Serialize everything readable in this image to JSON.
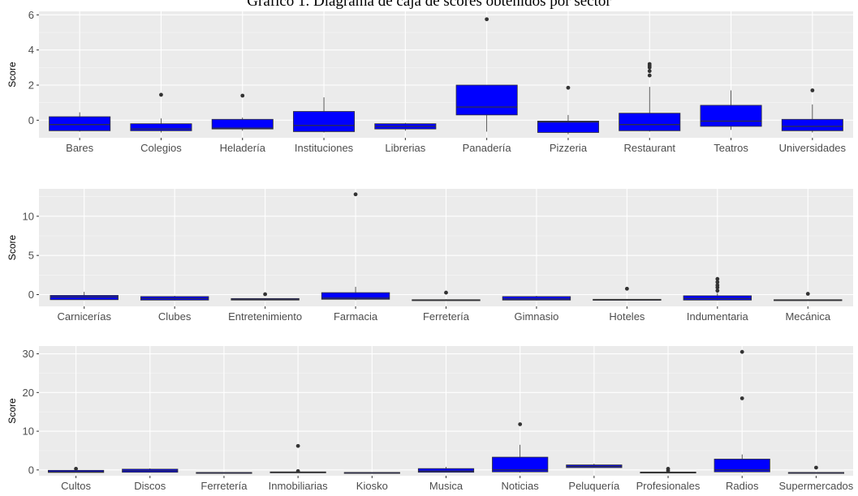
{
  "title": "Gráfico 1. Diagrama de caja de scores obtenidos por sector",
  "chart_data": [
    {
      "type": "boxplot",
      "ylabel": "Score",
      "ylim": [
        -1.0,
        6.2
      ],
      "yticks": [
        0,
        2,
        4,
        6
      ],
      "categories": [
        "Bares",
        "Colegios",
        "Heladería",
        "Instituciones",
        "Librerias",
        "Panadería",
        "Pizzeria",
        "Restaurant",
        "Teatros",
        "Universidades"
      ],
      "boxes": [
        {
          "min": -0.65,
          "q1": -0.6,
          "median": -0.25,
          "q3": 0.2,
          "max": 0.45,
          "outliers": []
        },
        {
          "min": -0.7,
          "q1": -0.6,
          "median": -0.5,
          "q3": -0.2,
          "max": 0.1,
          "outliers": [
            1.45
          ]
        },
        {
          "min": -0.6,
          "q1": -0.5,
          "median": -0.45,
          "q3": 0.05,
          "max": 0.15,
          "outliers": [
            1.4
          ]
        },
        {
          "min": -0.7,
          "q1": -0.65,
          "median": -0.3,
          "q3": 0.5,
          "max": 1.3,
          "outliers": []
        },
        {
          "min": -0.6,
          "q1": -0.5,
          "median": -0.35,
          "q3": -0.2,
          "max": -0.15,
          "outliers": []
        },
        {
          "min": -0.65,
          "q1": 0.3,
          "median": 0.75,
          "q3": 2.0,
          "max": 2.0,
          "outliers": [
            5.75
          ]
        },
        {
          "min": -0.8,
          "q1": -0.7,
          "median": -0.1,
          "q3": -0.05,
          "max": 0.3,
          "outliers": [
            1.85
          ]
        },
        {
          "min": -0.65,
          "q1": -0.6,
          "median": -0.25,
          "q3": 0.4,
          "max": 1.9,
          "outliers": [
            2.55,
            2.8,
            3.0,
            3.1,
            3.2
          ]
        },
        {
          "min": -0.55,
          "q1": -0.35,
          "median": -0.05,
          "q3": 0.85,
          "max": 1.7,
          "outliers": []
        },
        {
          "min": -0.7,
          "q1": -0.6,
          "median": -0.35,
          "q3": 0.05,
          "max": 0.9,
          "outliers": [
            1.7
          ]
        }
      ]
    },
    {
      "type": "boxplot",
      "ylabel": "Score",
      "ylim": [
        -1.5,
        13.5
      ],
      "yticks": [
        0,
        5,
        10
      ],
      "categories": [
        "Carnicerías",
        "Clubes",
        "Entretenimiento",
        "Farmacia",
        "Ferretería",
        "Gimnasio",
        "Hoteles",
        "Indumentaria",
        "Mecánica"
      ],
      "boxes": [
        {
          "min": -0.7,
          "q1": -0.65,
          "median": -0.3,
          "q3": -0.1,
          "max": 0.35,
          "outliers": []
        },
        {
          "min": -0.75,
          "q1": -0.7,
          "median": -0.5,
          "q3": -0.25,
          "max": -0.15,
          "outliers": []
        },
        {
          "min": -0.75,
          "q1": -0.7,
          "median": -0.6,
          "q3": -0.5,
          "max": -0.45,
          "outliers": [
            0.05
          ]
        },
        {
          "min": -0.7,
          "q1": -0.6,
          "median": -0.45,
          "q3": 0.25,
          "max": 1.0,
          "outliers": [
            12.8
          ]
        },
        {
          "min": -0.75,
          "q1": -0.7,
          "median": -0.7,
          "q3": -0.65,
          "max": -0.6,
          "outliers": [
            0.25
          ]
        },
        {
          "min": -0.75,
          "q1": -0.7,
          "median": -0.55,
          "q3": -0.25,
          "max": -0.15,
          "outliers": []
        },
        {
          "min": -0.75,
          "q1": -0.7,
          "median": -0.65,
          "q3": -0.6,
          "max": -0.6,
          "outliers": [
            0.75
          ]
        },
        {
          "min": -0.75,
          "q1": -0.7,
          "median": -0.5,
          "q3": -0.15,
          "max": 0.2,
          "outliers": [
            0.5,
            0.9,
            1.2,
            1.6,
            2.0
          ]
        },
        {
          "min": -0.75,
          "q1": -0.7,
          "median": -0.7,
          "q3": -0.65,
          "max": -0.6,
          "outliers": [
            0.1
          ]
        }
      ]
    },
    {
      "type": "boxplot",
      "ylabel": "Score",
      "ylim": [
        -1.5,
        32.0
      ],
      "yticks": [
        0,
        10,
        20,
        30
      ],
      "categories": [
        "Cultos",
        "Discos",
        "Ferretería",
        "Inmobiliarias",
        "Kiosko",
        "Musica",
        "Noticias",
        "Peluquería",
        "Profesionales",
        "Radios",
        "Supermercados"
      ],
      "boxes": [
        {
          "min": -0.7,
          "q1": -0.65,
          "median": -0.5,
          "q3": -0.1,
          "max": 0.0,
          "outliers": [
            0.3
          ]
        },
        {
          "min": -0.7,
          "q1": -0.6,
          "median": -0.2,
          "q3": 0.2,
          "max": 0.4,
          "outliers": []
        },
        {
          "min": -0.75,
          "q1": -0.7,
          "median": -0.7,
          "q3": -0.65,
          "max": -0.6,
          "outliers": []
        },
        {
          "min": -0.7,
          "q1": -0.65,
          "median": -0.6,
          "q3": -0.5,
          "max": -0.4,
          "outliers": [
            -0.3,
            6.2
          ]
        },
        {
          "min": -0.75,
          "q1": -0.7,
          "median": -0.7,
          "q3": -0.65,
          "max": -0.6,
          "outliers": []
        },
        {
          "min": -0.7,
          "q1": -0.6,
          "median": -0.3,
          "q3": 0.35,
          "max": 0.8,
          "outliers": []
        },
        {
          "min": -0.7,
          "q1": -0.5,
          "median": 0.0,
          "q3": 3.3,
          "max": 6.5,
          "outliers": [
            11.8
          ]
        },
        {
          "min": 0.5,
          "q1": 0.6,
          "median": 0.9,
          "q3": 1.3,
          "max": 1.6,
          "outliers": []
        },
        {
          "min": -0.75,
          "q1": -0.7,
          "median": -0.65,
          "q3": -0.55,
          "max": -0.5,
          "outliers": [
            -0.2,
            0.3
          ]
        },
        {
          "min": -0.7,
          "q1": -0.5,
          "median": 0.0,
          "q3": 2.8,
          "max": 4.0,
          "outliers": [
            18.5,
            30.5
          ]
        },
        {
          "min": -0.75,
          "q1": -0.7,
          "median": -0.7,
          "q3": -0.65,
          "max": -0.6,
          "outliers": [
            0.6
          ]
        }
      ]
    }
  ]
}
